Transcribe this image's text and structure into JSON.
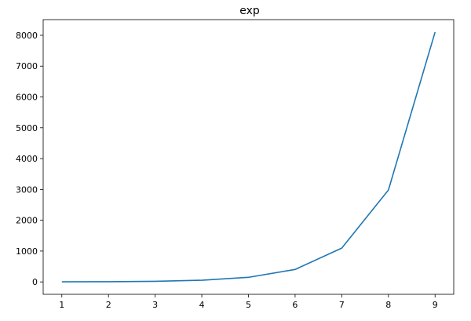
{
  "chart_data": {
    "type": "line",
    "title": "exp",
    "xlabel": "",
    "ylabel": "",
    "x": [
      1,
      2,
      3,
      4,
      5,
      6,
      7,
      8,
      9
    ],
    "series": [
      {
        "values": [
          2.72,
          7.39,
          20.09,
          54.6,
          148.41,
          403.43,
          1096.63,
          2980.96,
          8103.08
        ],
        "color": "#1f77b4"
      }
    ],
    "xticks": [
      "1",
      "2",
      "3",
      "4",
      "5",
      "6",
      "7",
      "8",
      "9"
    ],
    "yticks": [
      "0",
      "1000",
      "2000",
      "3000",
      "4000",
      "5000",
      "6000",
      "7000",
      "8000"
    ],
    "xlim": [
      0.6,
      9.4
    ],
    "ylim": [
      -402.5,
      8508.4
    ],
    "grid": false,
    "legend": "none"
  }
}
